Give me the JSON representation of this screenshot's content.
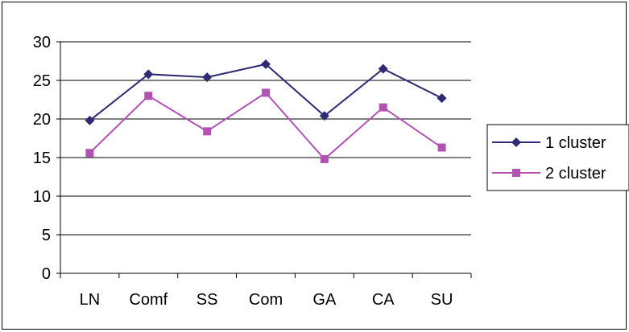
{
  "chart_data": {
    "type": "line",
    "categories": [
      "LN",
      "Comf",
      "SS",
      "Com",
      "GA",
      "CA",
      "SU"
    ],
    "series": [
      {
        "name": "1 cluster",
        "values": [
          19.8,
          25.8,
          25.4,
          27.1,
          20.4,
          26.5,
          22.7
        ],
        "color": "#2e2a75",
        "marker": "diamond"
      },
      {
        "name": "2 cluster",
        "values": [
          15.6,
          23.0,
          18.4,
          23.4,
          14.8,
          21.5,
          16.3
        ],
        "color": "#b253b4",
        "marker": "square"
      }
    ],
    "ylim": [
      0,
      30
    ],
    "yticks": [
      0,
      5,
      10,
      15,
      20,
      25,
      30
    ],
    "grid": true,
    "legend": "right",
    "title": "",
    "xlabel": "",
    "ylabel": ""
  }
}
